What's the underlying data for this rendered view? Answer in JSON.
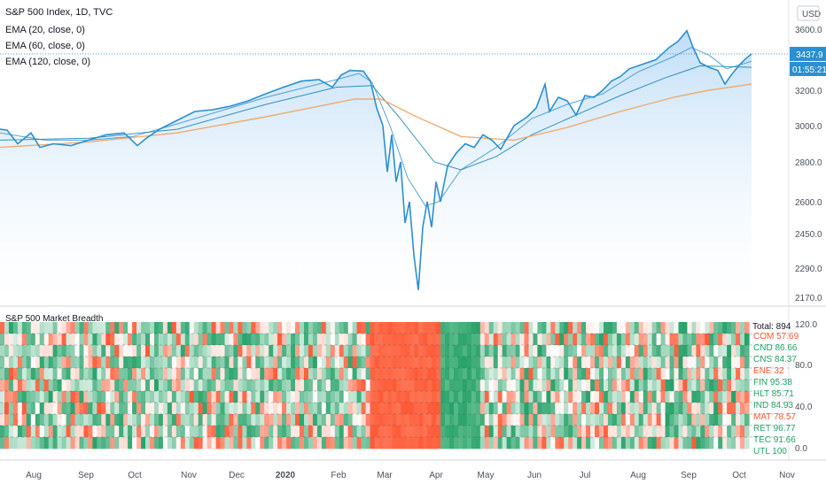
{
  "header": {
    "symbol": "S&P 500 Index, 1D, TVC",
    "indicators": [
      "EMA (20, close, 0)",
      "EMA (60, close, 0)",
      "EMA (120, close, 0)"
    ],
    "currency": "USD"
  },
  "price_badge": {
    "value": "3437.9",
    "countdown": "01:55:21"
  },
  "colors": {
    "price_line": "#2b8fd0",
    "ema20": "#2b8fd0",
    "ema60": "#1f86b8",
    "ema120": "#f0a35e",
    "area_top": "#bcdcf7",
    "breadth_red": "#ff5a36",
    "breadth_green": "#26a269",
    "badge": "#2b8fd0",
    "axis_text": "#4a4f5c"
  },
  "chart_data": [
    {
      "type": "line",
      "title": "S&P 500 Index, 1D, TVC",
      "ylabel": "USD",
      "yticks": [
        2170.0,
        2290.0,
        2450.0,
        2600.0,
        2800.0,
        3000.0,
        3200.0,
        3600.0
      ],
      "ylim": [
        2150,
        3660
      ],
      "x_labels": [
        "Aug",
        "Sep",
        "Oct",
        "Nov",
        "Dec",
        "2020",
        "Feb",
        "Mar",
        "Apr",
        "May",
        "Jun",
        "Jul",
        "Aug",
        "Sep",
        "Oct",
        "Nov"
      ],
      "price_points": [
        [
          0,
          2980
        ],
        [
          8,
          2975
        ],
        [
          20,
          2900
        ],
        [
          35,
          2960
        ],
        [
          45,
          2880
        ],
        [
          60,
          2900
        ],
        [
          80,
          2890
        ],
        [
          100,
          2920
        ],
        [
          120,
          2950
        ],
        [
          140,
          2960
        ],
        [
          155,
          2890
        ],
        [
          165,
          2930
        ],
        [
          180,
          2980
        ],
        [
          200,
          3030
        ],
        [
          220,
          3080
        ],
        [
          240,
          3090
        ],
        [
          260,
          3110
        ],
        [
          280,
          3140
        ],
        [
          300,
          3180
        ],
        [
          320,
          3220
        ],
        [
          340,
          3260
        ],
        [
          360,
          3270
        ],
        [
          375,
          3220
        ],
        [
          385,
          3300
        ],
        [
          395,
          3330
        ],
        [
          410,
          3325
        ],
        [
          418,
          3260
        ],
        [
          425,
          3100
        ],
        [
          432,
          3000
        ],
        [
          437,
          2750
        ],
        [
          442,
          2950
        ],
        [
          447,
          2700
        ],
        [
          452,
          2800
        ],
        [
          457,
          2500
        ],
        [
          462,
          2600
        ],
        [
          467,
          2350
        ],
        [
          472,
          2200
        ],
        [
          477,
          2480
        ],
        [
          482,
          2600
        ],
        [
          487,
          2480
        ],
        [
          492,
          2700
        ],
        [
          497,
          2600
        ],
        [
          505,
          2780
        ],
        [
          515,
          2850
        ],
        [
          525,
          2900
        ],
        [
          535,
          2880
        ],
        [
          545,
          2950
        ],
        [
          555,
          2920
        ],
        [
          565,
          2870
        ],
        [
          580,
          3000
        ],
        [
          595,
          3050
        ],
        [
          605,
          3100
        ],
        [
          615,
          3240
        ],
        [
          620,
          3080
        ],
        [
          630,
          3160
        ],
        [
          640,
          3140
        ],
        [
          650,
          3060
        ],
        [
          660,
          3170
        ],
        [
          670,
          3160
        ],
        [
          680,
          3200
        ],
        [
          690,
          3260
        ],
        [
          700,
          3290
        ],
        [
          710,
          3340
        ],
        [
          720,
          3360
        ],
        [
          740,
          3400
        ],
        [
          755,
          3480
        ],
        [
          765,
          3520
        ],
        [
          775,
          3590
        ],
        [
          782,
          3480
        ],
        [
          790,
          3380
        ],
        [
          800,
          3350
        ],
        [
          810,
          3330
        ],
        [
          818,
          3240
        ],
        [
          825,
          3300
        ],
        [
          835,
          3370
        ],
        [
          842,
          3410
        ],
        [
          848,
          3437.9
        ]
      ],
      "series": [
        {
          "name": "EMA (20, close, 0)",
          "values": [
            [
              0,
              2960
            ],
            [
              50,
              2920
            ],
            [
              100,
              2920
            ],
            [
              150,
              2940
            ],
            [
              200,
              3010
            ],
            [
              300,
              3160
            ],
            [
              380,
              3270
            ],
            [
              405,
              3310
            ],
            [
              420,
              3250
            ],
            [
              440,
              3000
            ],
            [
              460,
              2720
            ],
            [
              480,
              2580
            ],
            [
              495,
              2600
            ],
            [
              520,
              2760
            ],
            [
              560,
              2880
            ],
            [
              600,
              3040
            ],
            [
              640,
              3120
            ],
            [
              680,
              3180
            ],
            [
              720,
              3320
            ],
            [
              760,
              3420
            ],
            [
              780,
              3480
            ],
            [
              800,
              3430
            ],
            [
              820,
              3340
            ],
            [
              848,
              3390
            ]
          ]
        },
        {
          "name": "EMA (60, close, 0)",
          "values": [
            [
              0,
              2920
            ],
            [
              100,
              2930
            ],
            [
              200,
              2980
            ],
            [
              300,
              3120
            ],
            [
              380,
              3220
            ],
            [
              420,
              3230
            ],
            [
              450,
              3050
            ],
            [
              490,
              2800
            ],
            [
              520,
              2760
            ],
            [
              560,
              2830
            ],
            [
              600,
              2950
            ],
            [
              650,
              3060
            ],
            [
              700,
              3170
            ],
            [
              750,
              3280
            ],
            [
              790,
              3360
            ],
            [
              848,
              3350
            ]
          ]
        },
        {
          "name": "EMA (120, close, 0)",
          "values": [
            [
              0,
              2880
            ],
            [
              100,
              2910
            ],
            [
              200,
              2960
            ],
            [
              300,
              3050
            ],
            [
              400,
              3150
            ],
            [
              430,
              3150
            ],
            [
              470,
              3050
            ],
            [
              520,
              2940
            ],
            [
              580,
              2920
            ],
            [
              640,
              2990
            ],
            [
              700,
              3080
            ],
            [
              760,
              3160
            ],
            [
              800,
              3200
            ],
            [
              848,
              3240
            ]
          ]
        }
      ]
    },
    {
      "type": "heatmap",
      "title": "S&P 500 Market Breadth",
      "yticks": [
        120.0,
        80.0,
        40.0,
        0.0
      ],
      "total_label": "Total: 894",
      "rows": [
        {
          "label": "COM 57.69",
          "color": "#ff5a36"
        },
        {
          "label": "CND 86.66",
          "color": "#26a269"
        },
        {
          "label": "CNS 84.37",
          "color": "#26a269"
        },
        {
          "label": "ENE 32",
          "color": "#ff5a36"
        },
        {
          "label": "FIN 95.38",
          "color": "#26a269"
        },
        {
          "label": "HLT 85.71",
          "color": "#26a269"
        },
        {
          "label": "IND 84.93",
          "color": "#26a269"
        },
        {
          "label": "MAT 78.57",
          "color": "#ff5a36"
        },
        {
          "label": "RET 96.77",
          "color": "#26a269"
        },
        {
          "label": "TEC 91.66",
          "color": "#26a269"
        },
        {
          "label": "UTL 100",
          "color": "#26a269"
        }
      ]
    }
  ]
}
